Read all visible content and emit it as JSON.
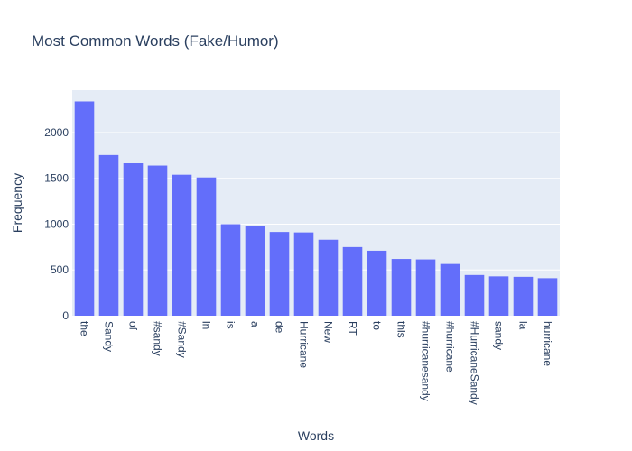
{
  "chart_data": {
    "type": "bar",
    "title": "Most Common Words (Fake/Humor)",
    "xlabel": "Words",
    "ylabel": "Frequency",
    "categories": [
      "the",
      "Sandy",
      "of",
      "#sandy",
      "#Sandy",
      "in",
      "is",
      "a",
      "de",
      "Hurricane",
      "New",
      "RT",
      "to",
      "this",
      "#hurricanesandy",
      "#hurricane",
      "#HurricaneSandy",
      "sandy",
      "la",
      "hurricane"
    ],
    "values": [
      2340,
      1755,
      1665,
      1640,
      1540,
      1510,
      1000,
      985,
      915,
      910,
      830,
      750,
      710,
      620,
      615,
      565,
      445,
      430,
      425,
      410
    ],
    "ylim": [
      0,
      2463
    ],
    "yticks": [
      0,
      500,
      1000,
      1500,
      2000
    ],
    "grid": true,
    "legend": "none",
    "colors": {
      "bar": "#636efa",
      "plot_bg": "#e5ecf6",
      "grid": "#ffffff",
      "text": "#2a3f5f"
    }
  }
}
